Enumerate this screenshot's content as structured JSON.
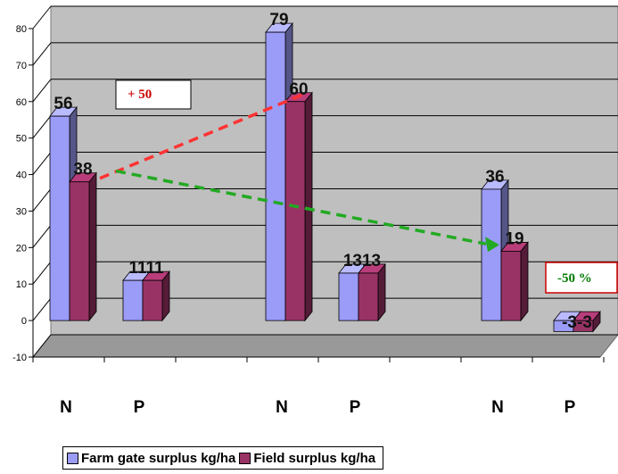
{
  "chart_data": {
    "type": "bar",
    "categories": [
      "N",
      "P",
      "N",
      "P",
      "N",
      "P"
    ],
    "series": [
      {
        "name": "Farm gate surplus kg/ha",
        "values": [
          56,
          11,
          79,
          13,
          36,
          -3
        ]
      },
      {
        "name": "Field surplus kg/ha",
        "values": [
          38,
          11,
          60,
          13,
          19,
          -3
        ]
      }
    ],
    "data_labels": [
      [
        "56",
        "1111",
        "79",
        "1313",
        "36",
        "-3-3"
      ],
      [
        "38",
        "",
        "60",
        "",
        "19",
        ""
      ]
    ],
    "title": "",
    "xlabel": "",
    "ylabel": "",
    "ylim": [
      -10,
      80
    ],
    "yticks": [
      -10,
      0,
      10,
      20,
      30,
      40,
      50,
      60,
      70,
      80
    ],
    "grid": true,
    "legend_position": "bottom-left",
    "colors": {
      "series1": "#9b9bf8",
      "series2": "#993366",
      "wall": "#bfbfbf",
      "floor": "#999999"
    },
    "annotations": [
      {
        "text": "+ 50",
        "color": "#cc0000"
      },
      {
        "text": "-50 %",
        "color": "#007a00"
      }
    ]
  }
}
